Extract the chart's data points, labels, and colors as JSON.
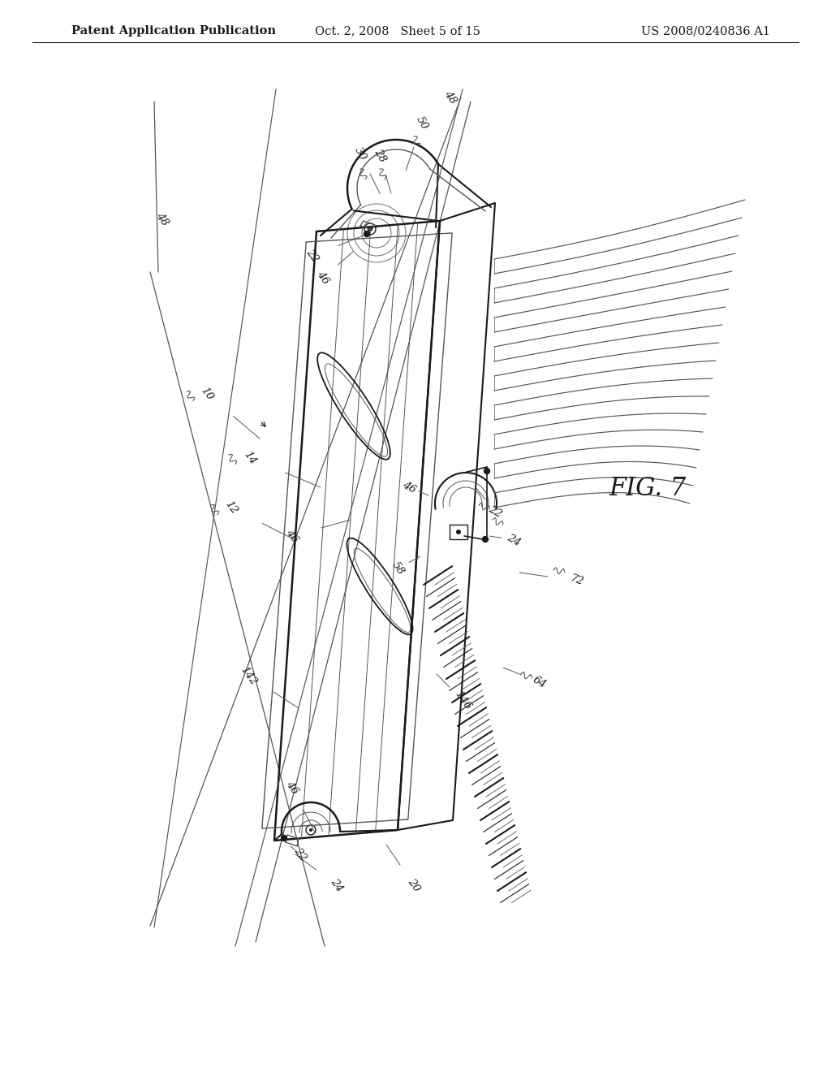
{
  "bg_color": "#ffffff",
  "header_left": "Patent Application Publication",
  "header_mid": "Oct. 2, 2008   Sheet 5 of 15",
  "header_right": "US 2008/0240836 A1",
  "fig_label": "FIG. 7",
  "header_fontsize": 10.5,
  "label_fontsize": 9.5,
  "line_color": "#1a1a1a",
  "gray_color": "#555555",
  "light_gray": "#888888"
}
